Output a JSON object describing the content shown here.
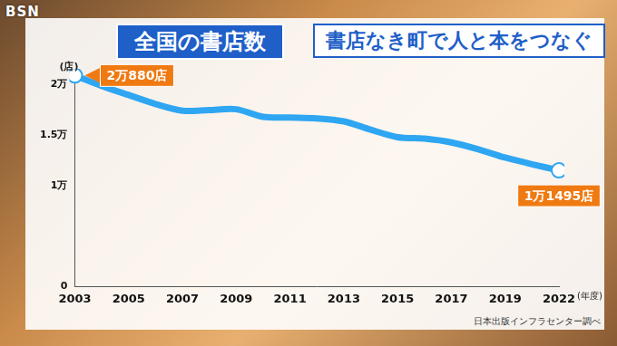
{
  "chart_data": {
    "type": "line",
    "title": "全国の書店数",
    "subtitle": "書店なき町で人と本をつなぐ",
    "logo": "BSN",
    "y_unit": "(店)",
    "x_unit": "(年度)",
    "source": "日本出版インフラセンター調べ",
    "categories": [
      "2003",
      null,
      "2005",
      null,
      "2007",
      null,
      "2009",
      null,
      "2011",
      null,
      "2013",
      null,
      "2015",
      null,
      "2017",
      null,
      "2019",
      null,
      "2022"
    ],
    "values": [
      20880,
      19850,
      18950,
      18060,
      17390,
      17460,
      17540,
      16790,
      16720,
      16640,
      16340,
      15520,
      14780,
      14630,
      14260,
      13580,
      12760,
      12100,
      11495
    ],
    "color": "#2fa6f2",
    "ylim": [
      0,
      21000
    ],
    "yticks": [
      0,
      {
        "value": 10000,
        "label": "1万"
      },
      {
        "value": 15000,
        "label": "1.5万"
      },
      {
        "value": 20000,
        "label": "2万"
      }
    ],
    "grid": false,
    "annotations": [
      {
        "category": "2003",
        "value": 20880,
        "label": "2万880店"
      },
      {
        "category": "2022",
        "value": 11495,
        "label": "1万1495店"
      }
    ]
  }
}
